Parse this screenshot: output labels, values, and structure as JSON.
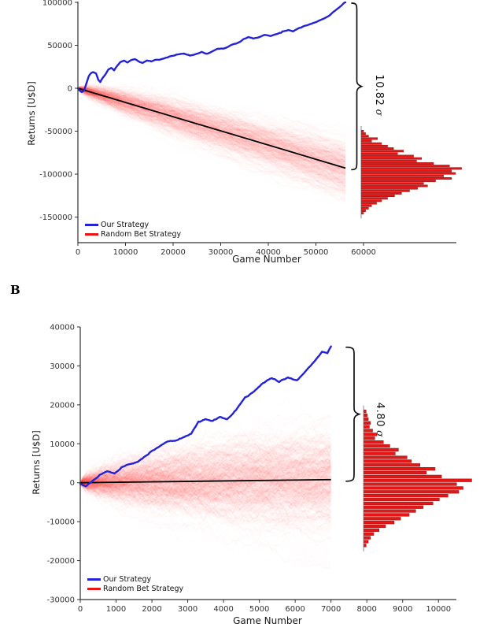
{
  "figure": {
    "background": "#ffffff"
  },
  "chart_data": [
    {
      "type": "line",
      "panel_label": "",
      "xlabel": "Game Number",
      "ylabel": "Returns [U$D]",
      "x_axis": {
        "min": 0,
        "max": 79500,
        "ticks": [
          0,
          10000,
          20000,
          30000,
          40000,
          50000,
          60000
        ]
      },
      "y_axis": {
        "min": -179800,
        "max": 100900,
        "ticks": [
          100000,
          50000,
          0,
          -50000,
          -100000,
          -150000
        ]
      },
      "legend": {
        "position": "bottom-left",
        "items": [
          {
            "label": "Our Strategy",
            "color": "#2222d8"
          },
          {
            "label": "Random Bet Strategy",
            "color": "#e91414"
          }
        ]
      },
      "annotation": {
        "value": "10.82",
        "sigma": "σ",
        "from": 100000,
        "to": -93000
      },
      "series": [
        {
          "name": "Our Strategy",
          "type": "line",
          "color": "#2222d8",
          "width": 2.4,
          "points": [
            [
              0,
              0
            ],
            [
              400,
              -2500
            ],
            [
              800,
              -4300
            ],
            [
              1300,
              -2000
            ],
            [
              1800,
              6000
            ],
            [
              2300,
              14500
            ],
            [
              2800,
              17500
            ],
            [
              3300,
              18500
            ],
            [
              3800,
              16500
            ],
            [
              4300,
              9500
            ],
            [
              4700,
              7000
            ],
            [
              5200,
              11500
            ],
            [
              5800,
              15500
            ],
            [
              6400,
              21000
            ],
            [
              7000,
              23500
            ],
            [
              7600,
              21000
            ],
            [
              8200,
              26000
            ],
            [
              8900,
              30500
            ],
            [
              9700,
              32000
            ],
            [
              10400,
              29500
            ],
            [
              11200,
              32500
            ],
            [
              12000,
              34000
            ],
            [
              12800,
              31500
            ],
            [
              13600,
              30000
            ],
            [
              14500,
              33000
            ],
            [
              15400,
              32000
            ],
            [
              16400,
              34000
            ],
            [
              17400,
              34500
            ],
            [
              18500,
              35500
            ],
            [
              19800,
              37000
            ],
            [
              21000,
              39000
            ],
            [
              22300,
              40500
            ],
            [
              23500,
              38500
            ],
            [
              24800,
              40500
            ],
            [
              26000,
              42000
            ],
            [
              27000,
              40500
            ],
            [
              28200,
              43000
            ],
            [
              29500,
              46000
            ],
            [
              30800,
              47500
            ],
            [
              32000,
              50500
            ],
            [
              33300,
              52500
            ],
            [
              34500,
              55500
            ],
            [
              35800,
              58500
            ],
            [
              36800,
              57500
            ],
            [
              38000,
              59000
            ],
            [
              39200,
              62000
            ],
            [
              40500,
              60500
            ],
            [
              41800,
              63000
            ],
            [
              43000,
              66500
            ],
            [
              44200,
              68000
            ],
            [
              45200,
              66500
            ],
            [
              46500,
              70000
            ],
            [
              47800,
              73000
            ],
            [
              49000,
              75500
            ],
            [
              50300,
              78000
            ],
            [
              51500,
              81000
            ],
            [
              52800,
              85000
            ],
            [
              54000,
              90500
            ],
            [
              55000,
              95000
            ],
            [
              55700,
              98500
            ],
            [
              56200,
              100000
            ]
          ]
        },
        {
          "name": "Random Bet Strategy",
          "type": "random-walk-ensemble",
          "color": "#f40f0f",
          "x_end": 56200,
          "end_mean": -93000,
          "end_std": 17800
        },
        {
          "name": "random-mean-line",
          "type": "line",
          "color": "#000000",
          "width": 1.8,
          "points": [
            [
              0,
              0
            ],
            [
              56200,
              -93000
            ]
          ]
        }
      ],
      "histogram": {
        "color": "#e91414",
        "edge": "#8f0f0f",
        "baseline_x": 59500,
        "bar_max_x": 80500,
        "y_top": -48500,
        "y_bottom": -147000,
        "bars": [
          0.02,
          0.04,
          0.07,
          0.16,
          0.1,
          0.2,
          0.26,
          0.32,
          0.42,
          0.36,
          0.52,
          0.6,
          0.55,
          0.72,
          0.88,
          1.0,
          0.9,
          0.94,
          0.82,
          0.9,
          0.74,
          0.62,
          0.66,
          0.56,
          0.48,
          0.4,
          0.33,
          0.26,
          0.2,
          0.15,
          0.1,
          0.07,
          0.04,
          0.02
        ]
      }
    },
    {
      "type": "line",
      "panel_label": "B",
      "xlabel": "Game Number",
      "ylabel": "Returns [U$D]",
      "x_axis": {
        "min": 0,
        "max": 10500,
        "ticks": [
          0,
          1000,
          2000,
          3000,
          4000,
          5000,
          6000,
          7000,
          8000,
          9000,
          10000
        ]
      },
      "y_axis": {
        "min": -30000,
        "max": 40000,
        "ticks": [
          40000,
          30000,
          20000,
          10000,
          0,
          -10000,
          -20000,
          -30000
        ]
      },
      "legend": {
        "position": "bottom-left",
        "items": [
          {
            "label": "Our Strategy",
            "color": "#2222d8"
          },
          {
            "label": "Random Bet Strategy",
            "color": "#e91414"
          }
        ]
      },
      "annotation": {
        "value": "4.80",
        "sigma": "σ",
        "from": 35000,
        "to": 800
      },
      "series": [
        {
          "name": "Our Strategy",
          "type": "line",
          "color": "#2222d8",
          "width": 2.4,
          "points": [
            [
              0,
              -400
            ],
            [
              150,
              -1100
            ],
            [
              350,
              300
            ],
            [
              550,
              1700
            ],
            [
              750,
              2600
            ],
            [
              950,
              2100
            ],
            [
              1150,
              3900
            ],
            [
              1400,
              4800
            ],
            [
              1650,
              5600
            ],
            [
              1900,
              7300
            ],
            [
              2150,
              9000
            ],
            [
              2400,
              10400
            ],
            [
              2650,
              10800
            ],
            [
              2900,
              11600
            ],
            [
              3100,
              12600
            ],
            [
              3300,
              15800
            ],
            [
              3500,
              16200
            ],
            [
              3700,
              15700
            ],
            [
              3900,
              16600
            ],
            [
              4100,
              15900
            ],
            [
              4350,
              18500
            ],
            [
              4600,
              21500
            ],
            [
              4850,
              23300
            ],
            [
              5100,
              25600
            ],
            [
              5350,
              26900
            ],
            [
              5550,
              25900
            ],
            [
              5800,
              27200
            ],
            [
              6050,
              26400
            ],
            [
              6300,
              28800
            ],
            [
              6550,
              31300
            ],
            [
              6750,
              33600
            ],
            [
              6900,
              33200
            ],
            [
              7000,
              35000
            ]
          ]
        },
        {
          "name": "Random Bet Strategy",
          "type": "random-walk-ensemble",
          "color": "#f40f0f",
          "x_end": 7000,
          "end_mean": 800,
          "end_std": 7100
        },
        {
          "name": "random-mean-line",
          "type": "line",
          "color": "#000000",
          "width": 1.8,
          "points": [
            [
              0,
              0
            ],
            [
              7000,
              800
            ]
          ]
        }
      ],
      "histogram": {
        "color": "#e91414",
        "edge": "#8f0f0f",
        "baseline_x": 7910,
        "bar_max_x": 10917,
        "y_top": 18800,
        "y_bottom": -16600,
        "bars": [
          0.02,
          0.03,
          0.04,
          0.06,
          0.05,
          0.08,
          0.12,
          0.1,
          0.18,
          0.24,
          0.32,
          0.29,
          0.4,
          0.44,
          0.52,
          0.66,
          0.58,
          0.72,
          1.0,
          0.86,
          0.92,
          0.88,
          0.78,
          0.7,
          0.64,
          0.55,
          0.48,
          0.42,
          0.34,
          0.28,
          0.2,
          0.14,
          0.09,
          0.06,
          0.04,
          0.02
        ]
      }
    }
  ]
}
